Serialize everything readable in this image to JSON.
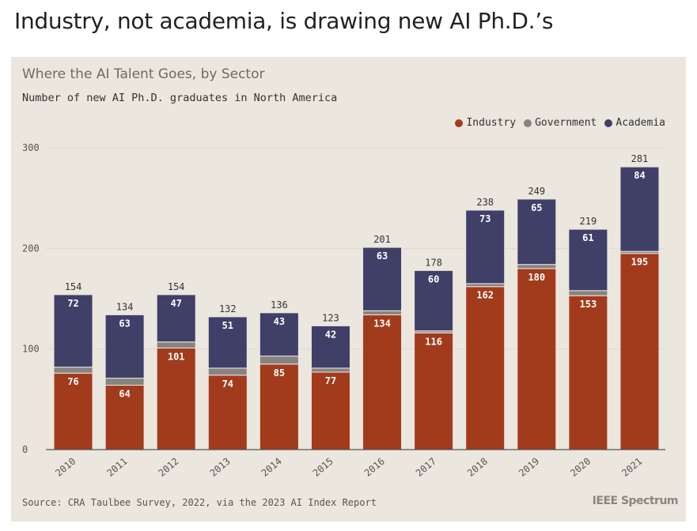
{
  "headline": "Industry, not academia, is drawing new AI Ph.D.’s",
  "card": {
    "title": "Where the AI Talent Goes, by Sector",
    "subtitle": "Number of new AI Ph.D. graduates in North America",
    "source": "Source: CRA Taulbee Survey, 2022, via the 2023 AI Index Report",
    "brand": "IEEE Spectrum"
  },
  "colors": {
    "industry": "#a23b1c",
    "government": "#878380",
    "academia": "#3f3f68",
    "grid": "#ddd7cf",
    "axis": "#555555"
  },
  "chart_data": {
    "type": "bar",
    "stacked": true,
    "categories": [
      "2010",
      "2011",
      "2012",
      "2013",
      "2014",
      "2015",
      "2016",
      "2017",
      "2018",
      "2019",
      "2020",
      "2021"
    ],
    "series": [
      {
        "name": "Industry",
        "values": [
          76,
          64,
          101,
          74,
          85,
          77,
          134,
          116,
          162,
          180,
          153,
          195
        ]
      },
      {
        "name": "Government",
        "values": [
          6,
          7,
          6,
          7,
          8,
          4,
          4,
          2,
          3,
          4,
          5,
          2
        ]
      },
      {
        "name": "Academia",
        "values": [
          72,
          63,
          47,
          51,
          43,
          42,
          63,
          60,
          73,
          65,
          61,
          84
        ]
      }
    ],
    "totals": [
      154,
      134,
      154,
      132,
      136,
      123,
      201,
      178,
      238,
      249,
      219,
      281
    ],
    "title": "Where the AI Talent Goes, by Sector",
    "xlabel": "",
    "ylabel": "",
    "ylim": [
      0,
      300
    ],
    "yticks": [
      0,
      100,
      200,
      300
    ],
    "grid": true,
    "legend": "top-right"
  }
}
